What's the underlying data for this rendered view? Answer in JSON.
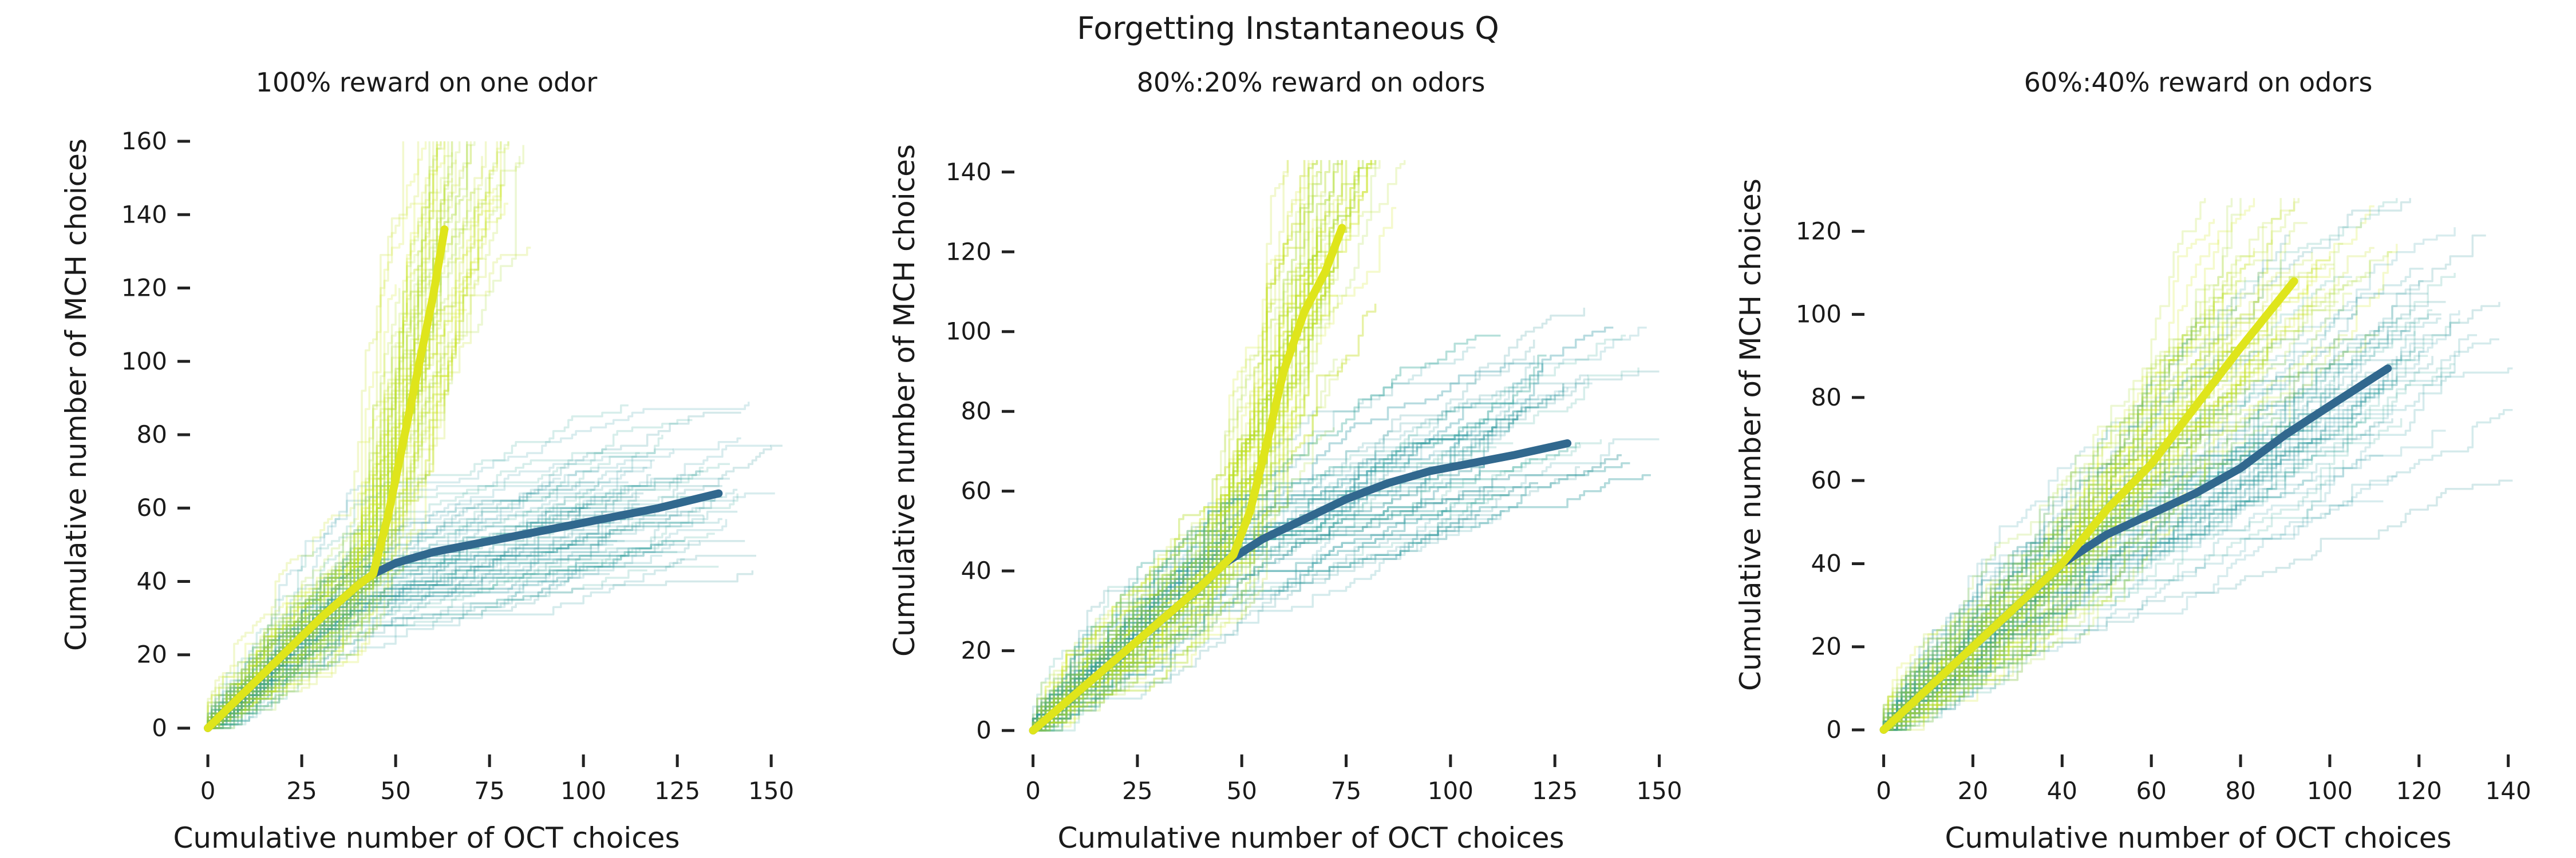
{
  "figure_title": "Forgetting Instantaneous Q",
  "colors": {
    "learn_trace": "#d7ea1a",
    "learn_mean": "#dfe51b",
    "forget_trace": "#2e9aa1",
    "forget_mean": "#31688e",
    "faint_greenish": "#b5de2b"
  },
  "chart_data": [
    {
      "type": "line",
      "title": "100% reward on one odor",
      "xlabel": "Cumulative number of OCT choices",
      "ylabel": "Cumulative number of MCH choices",
      "xlim": [
        -2,
        155
      ],
      "ylim": [
        -5,
        165
      ],
      "xticks": [
        0,
        25,
        50,
        75,
        100,
        125,
        150
      ],
      "yticks": [
        0,
        20,
        40,
        60,
        80,
        100,
        120,
        140,
        160
      ],
      "grid": false,
      "legend": "none",
      "series": [
        {
          "role": "forget_mean",
          "x": [
            0,
            10,
            20,
            30,
            40,
            44,
            50,
            60,
            75,
            90,
            105,
            120,
            136
          ],
          "y": [
            0,
            10,
            20,
            30,
            39,
            42,
            45,
            48,
            51,
            54,
            57,
            60,
            64
          ]
        },
        {
          "role": "learn_mean",
          "x": [
            0,
            10,
            20,
            30,
            40,
            44,
            48,
            52,
            56,
            60,
            63
          ],
          "y": [
            0,
            10,
            20,
            30,
            39,
            42,
            58,
            78,
            98,
            118,
            136
          ]
        }
      ]
    },
    {
      "type": "line",
      "title": "80%:20% reward on odors",
      "xlabel": "Cumulative number of OCT choices",
      "ylabel": "Cumulative number of MCH choices",
      "xlim": [
        -2,
        155
      ],
      "ylim": [
        -4,
        148
      ],
      "xticks": [
        0,
        25,
        50,
        75,
        100,
        125,
        150
      ],
      "yticks": [
        0,
        20,
        40,
        60,
        80,
        100,
        120,
        140
      ],
      "grid": false,
      "legend": "none",
      "series": [
        {
          "role": "forget_mean",
          "x": [
            0,
            10,
            20,
            30,
            40,
            46,
            55,
            65,
            75,
            85,
            95,
            105,
            115,
            128
          ],
          "y": [
            0,
            9,
            18,
            27,
            36,
            42,
            48,
            53,
            58,
            62,
            65,
            67,
            69,
            72
          ]
        },
        {
          "role": "learn_mean",
          "x": [
            0,
            10,
            20,
            30,
            40,
            48,
            52,
            56,
            60,
            65,
            70,
            74
          ],
          "y": [
            0,
            9,
            18,
            27,
            36,
            44,
            55,
            72,
            90,
            105,
            115,
            126
          ]
        }
      ]
    },
    {
      "type": "line",
      "title": "60%:40% reward on odors",
      "xlabel": "Cumulative number of OCT choices",
      "ylabel": "Cumulative number of MCH choices",
      "xlim": [
        -2,
        143
      ],
      "ylim": [
        -4,
        133
      ],
      "xticks": [
        0,
        20,
        40,
        60,
        80,
        100,
        120,
        140
      ],
      "yticks": [
        0,
        20,
        40,
        60,
        80,
        100,
        120
      ],
      "grid": false,
      "legend": "none",
      "series": [
        {
          "role": "forget_mean",
          "x": [
            0,
            10,
            20,
            30,
            40,
            50,
            60,
            70,
            80,
            90,
            100,
            113
          ],
          "y": [
            0,
            10,
            20,
            30,
            40,
            47,
            52,
            57,
            63,
            71,
            78,
            87
          ]
        },
        {
          "role": "learn_mean",
          "x": [
            0,
            10,
            20,
            30,
            40,
            50,
            60,
            70,
            80,
            92
          ],
          "y": [
            0,
            10,
            20,
            30,
            40,
            53,
            64,
            78,
            92,
            108
          ]
        }
      ]
    }
  ]
}
